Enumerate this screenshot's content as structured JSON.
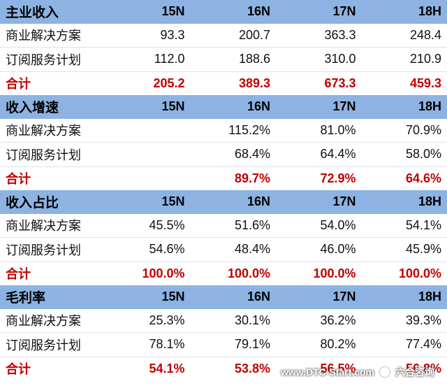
{
  "columns": [
    "15N",
    "16N",
    "17N",
    "18H"
  ],
  "sections": [
    {
      "title": "主业收入",
      "rows": [
        {
          "label": "商业解决方案",
          "values": [
            "93.3",
            "200.7",
            "363.3",
            "248.4"
          ]
        },
        {
          "label": "订阅服务计划",
          "values": [
            "112.0",
            "188.6",
            "310.0",
            "210.9"
          ]
        }
      ],
      "total": {
        "label": "合计",
        "values": [
          "205.2",
          "389.3",
          "673.3",
          "459.3"
        ]
      }
    },
    {
      "title": "收入增速",
      "rows": [
        {
          "label": "商业解决方案",
          "values": [
            "",
            "115.2%",
            "81.0%",
            "70.9%"
          ]
        },
        {
          "label": "订阅服务计划",
          "values": [
            "",
            "68.4%",
            "64.4%",
            "58.0%"
          ]
        }
      ],
      "total": {
        "label": "合计",
        "values": [
          "",
          "89.7%",
          "72.9%",
          "64.6%"
        ]
      }
    },
    {
      "title": "收入占比",
      "rows": [
        {
          "label": "商业解决方案",
          "values": [
            "45.5%",
            "51.6%",
            "54.0%",
            "54.1%"
          ]
        },
        {
          "label": "订阅服务计划",
          "values": [
            "54.6%",
            "48.4%",
            "46.0%",
            "45.9%"
          ]
        }
      ],
      "total": {
        "label": "合计",
        "values": [
          "100.0%",
          "100.0%",
          "100.0%",
          "100.0%"
        ]
      }
    },
    {
      "title": "毛利率",
      "rows": [
        {
          "label": "商业解决方案",
          "values": [
            "25.3%",
            "30.1%",
            "36.2%",
            "39.3%"
          ]
        },
        {
          "label": "订阅服务计划",
          "values": [
            "78.1%",
            "79.1%",
            "80.2%",
            "77.4%"
          ]
        }
      ],
      "total": {
        "label": "合计",
        "values": [
          "54.1%",
          "53.8%",
          "56.5%",
          "56.8%"
        ]
      }
    }
  ],
  "watermark": {
    "site": "www.DTC-Start.com",
    "brand": "六合咨询"
  }
}
